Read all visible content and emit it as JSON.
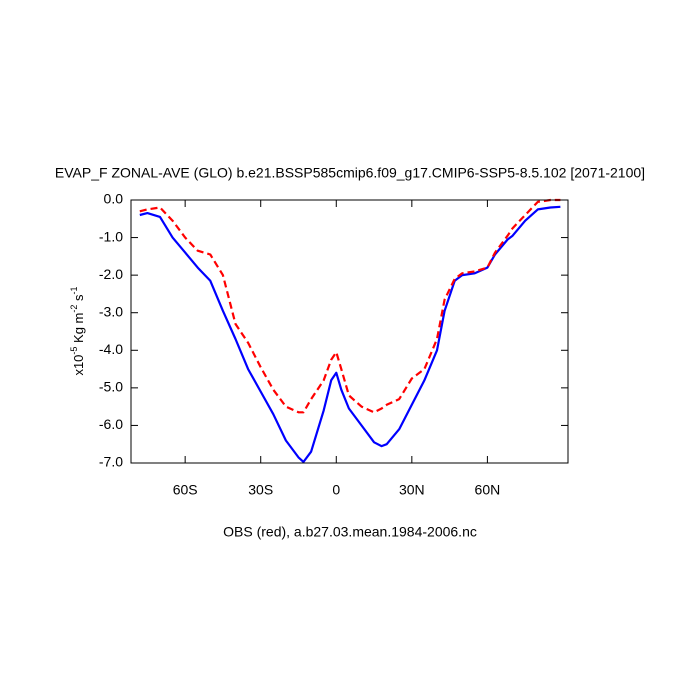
{
  "chart_data": {
    "type": "line",
    "title": "EVAP_F ZONAL-AVE (GLO) b.e21.BSSP585cmip6.f09_g17.CMIP6-SSP5-8.5.102 [2071-2100]",
    "xlabel": "OBS (red), a.b27.03.mean.1984-2006.nc",
    "ylabel_parts": [
      "x10",
      "-5",
      " Kg m",
      "-2",
      " s",
      "-1"
    ],
    "x": [
      -78,
      -75,
      -70,
      -65,
      -60,
      -55,
      -50,
      -45,
      -40,
      -35,
      -30,
      -25,
      -20,
      -15,
      -13,
      -10,
      -5,
      -2,
      0,
      2,
      5,
      10,
      15,
      18,
      20,
      25,
      30,
      35,
      40,
      43,
      47,
      50,
      55,
      60,
      63,
      68,
      70,
      75,
      80,
      85,
      89
    ],
    "series": [
      {
        "color": "#0000ff",
        "dash": false,
        "values": [
          -0.4,
          -0.35,
          -0.45,
          -1.0,
          -1.4,
          -1.8,
          -2.15,
          -2.95,
          -3.7,
          -4.5,
          -5.1,
          -5.7,
          -6.4,
          -6.85,
          -6.97,
          -6.7,
          -5.6,
          -4.8,
          -4.6,
          -5.05,
          -5.55,
          -6.0,
          -6.45,
          -6.55,
          -6.5,
          -6.1,
          -5.45,
          -4.8,
          -4.0,
          -2.95,
          -2.15,
          -2.0,
          -1.95,
          -1.8,
          -1.45,
          -1.05,
          -0.95,
          -0.55,
          -0.25,
          -0.2,
          -0.18
        ]
      },
      {
        "color": "#ff0000",
        "dash": true,
        "values": [
          -0.3,
          -0.25,
          -0.2,
          -0.55,
          -1.0,
          -1.35,
          -1.45,
          -2.0,
          -3.3,
          -3.8,
          -4.45,
          -5.05,
          -5.5,
          -5.65,
          -5.65,
          -5.3,
          -4.8,
          -4.25,
          -4.05,
          -4.5,
          -5.2,
          -5.5,
          -5.65,
          -5.55,
          -5.45,
          -5.3,
          -4.75,
          -4.5,
          -3.7,
          -2.65,
          -2.1,
          -1.95,
          -1.9,
          -1.8,
          -1.4,
          -0.95,
          -0.75,
          -0.4,
          -0.05,
          0,
          0
        ]
      }
    ],
    "xlim": [
      -81.5,
      92
    ],
    "xticks": [
      {
        "value": -60,
        "label": "60S"
      },
      {
        "value": -30,
        "label": "30S"
      },
      0,
      {
        "value": 30,
        "label": "30N"
      },
      {
        "value": 60,
        "label": "60N"
      }
    ],
    "ylim": [
      -7,
      0
    ],
    "yticks": [
      {
        "value": 0,
        "label": "0.0"
      },
      {
        "value": -1,
        "label": "-1.0"
      },
      {
        "value": -2,
        "label": "-2.0"
      },
      {
        "value": -3,
        "label": "-3.0"
      },
      {
        "value": -4,
        "label": "-4.0"
      },
      {
        "value": -5,
        "label": "-5.0"
      },
      {
        "value": -6,
        "label": "-6.0"
      },
      {
        "value": -7,
        "label": "-7.0"
      }
    ],
    "grid": false
  }
}
